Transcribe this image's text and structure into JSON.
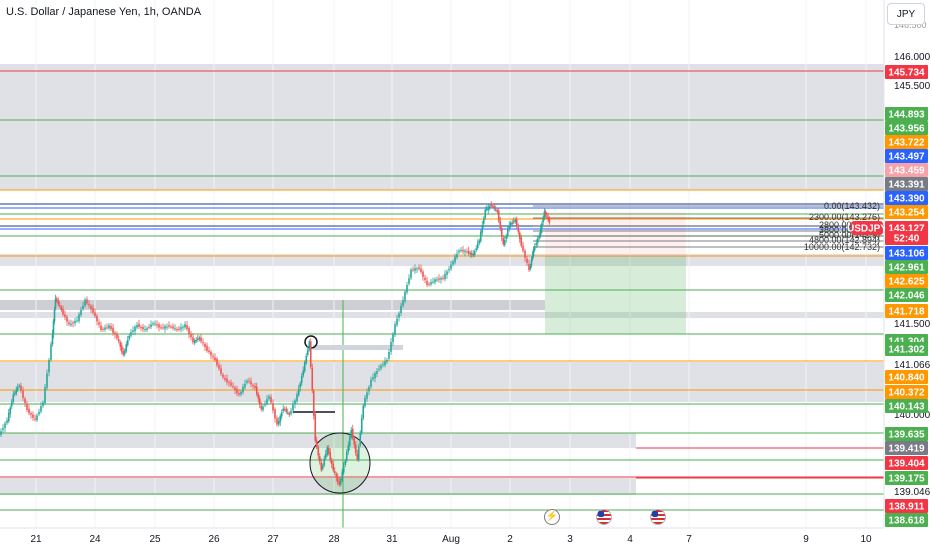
{
  "title": "U.S. Dollar / Japanese Yen, 1h, OANDA",
  "currency_button": "JPY",
  "colors": {
    "up": "#26a69a",
    "down": "#ef5350",
    "green_line": "#4caf50",
    "red_line": "#f23645",
    "orange_line": "#ff9800",
    "blue_line": "#2962ff",
    "zone": "#d1d4dc"
  },
  "price_axis": {
    "ticks": [
      "146.000",
      "145.500",
      "141.500",
      "141.066",
      "140.000",
      "139.046"
    ]
  },
  "price_badges": [
    {
      "value": "145.734",
      "color": "#f23645"
    },
    {
      "value": "144.893",
      "color": "#4caf50"
    },
    {
      "value": "143.956",
      "color": "#4caf50"
    },
    {
      "value": "143.722",
      "color": "#ff9800"
    },
    {
      "value": "143.497",
      "color": "#2962ff"
    },
    {
      "value": "143.459",
      "color": "#f7a1a8"
    },
    {
      "value": "143.391",
      "color": "#787b86"
    },
    {
      "value": "143.390",
      "color": "#2962ff"
    },
    {
      "value": "143.254",
      "color": "#ff9800"
    },
    {
      "value": "USDJPY",
      "color": "#f23645"
    },
    {
      "value": "143.127",
      "color": "#f23645"
    },
    {
      "value": "52:40",
      "color": "#f23645"
    },
    {
      "value": "143.106",
      "color": "#2962ff"
    },
    {
      "value": "142.961",
      "color": "#4caf50"
    },
    {
      "value": "142.625",
      "color": "#ff9800"
    },
    {
      "value": "142.046",
      "color": "#4caf50"
    },
    {
      "value": "141.718",
      "color": "#ff9800"
    },
    {
      "value": "141.304",
      "color": "#4caf50"
    },
    {
      "value": "141.302",
      "color": "#4caf50"
    },
    {
      "value": "140.840",
      "color": "#ff9800"
    },
    {
      "value": "140.372",
      "color": "#ff9800"
    },
    {
      "value": "140.143",
      "color": "#4caf50"
    },
    {
      "value": "139.635",
      "color": "#4caf50"
    },
    {
      "value": "139.419",
      "color": "#787b86"
    },
    {
      "value": "139.404",
      "color": "#f23645"
    },
    {
      "value": "139.175",
      "color": "#4caf50"
    },
    {
      "value": "138.911",
      "color": "#f23645"
    },
    {
      "value": "138.618",
      "color": "#4caf50"
    }
  ],
  "fib_labels": [
    "0.00(143.432)",
    "2300.00(143.276)",
    "2800.00(143.1)",
    "3800.00(143.0)",
    "5000.00(142.9)",
    "4800.00(142.894)",
    "10000.00(142.732)"
  ],
  "time_axis": [
    "21",
    "24",
    "25",
    "26",
    "27",
    "28",
    "31",
    "Aug",
    "2",
    "3",
    "4",
    "7",
    "9",
    "10"
  ],
  "event_icons": [
    {
      "name": "lightning-event-icon",
      "day": "2"
    },
    {
      "name": "us-flag-event-icon",
      "day": "3"
    },
    {
      "name": "us-flag-event-icon",
      "day": "4"
    }
  ]
}
